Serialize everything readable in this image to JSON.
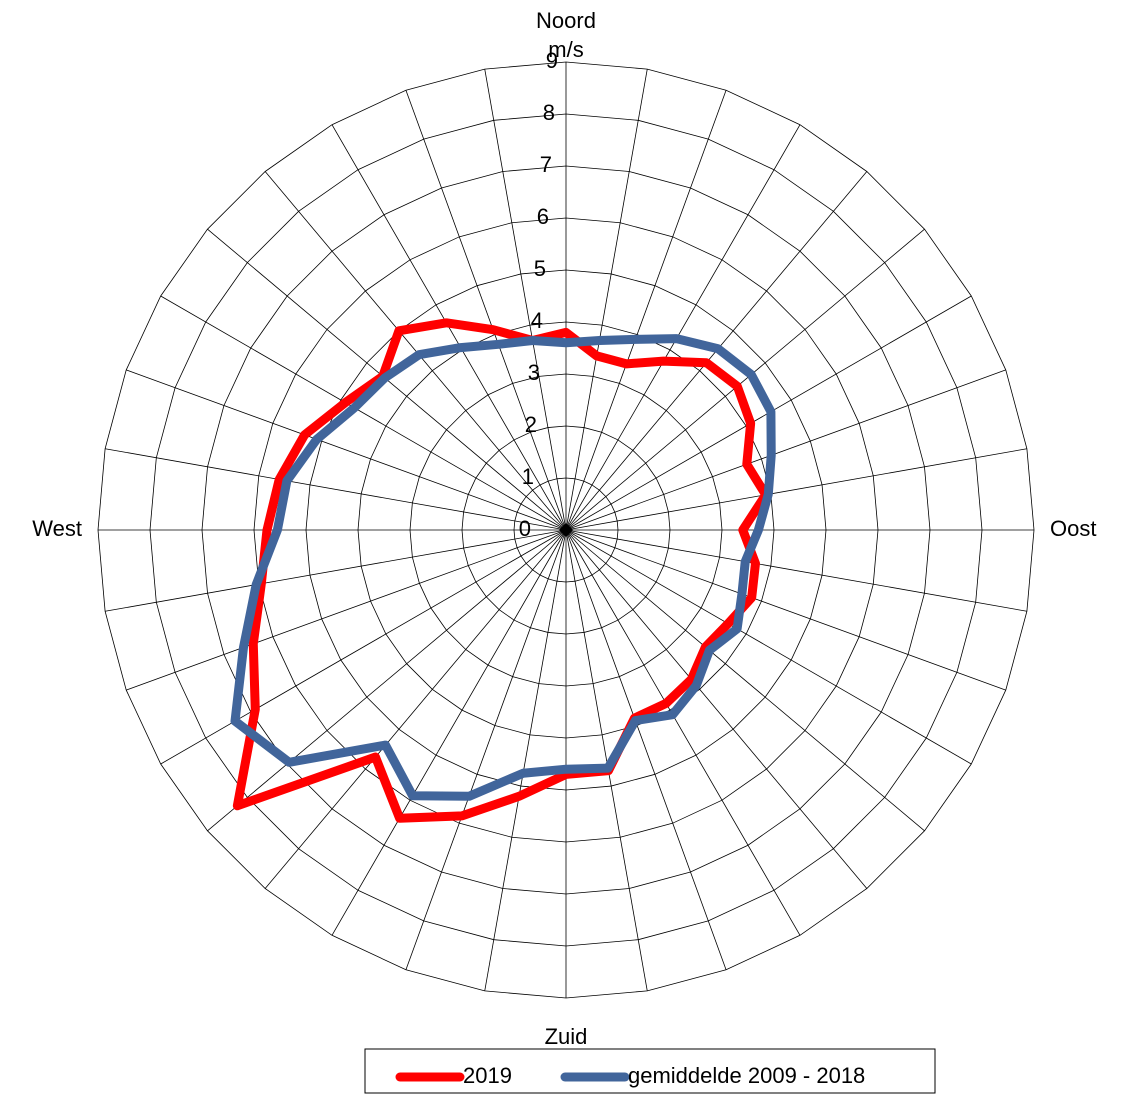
{
  "chart_data": {
    "type": "radar",
    "categories": [
      "Noord",
      null,
      null,
      null,
      null,
      null,
      null,
      null,
      null,
      "Oost",
      null,
      null,
      null,
      null,
      null,
      null,
      null,
      null,
      "Zuid",
      null,
      null,
      null,
      null,
      null,
      null,
      null,
      null,
      "West",
      null,
      null,
      null,
      null,
      null,
      null,
      null,
      null
    ],
    "y_label": "m/s",
    "ylim": [
      0,
      9
    ],
    "yticks": [
      0,
      1,
      2,
      3,
      4,
      5,
      6,
      7,
      8,
      9
    ],
    "grid": true,
    "legend": "bottom",
    "series": [
      {
        "name": "2019",
        "color": "#ff0000",
        "values": [
          3.8,
          3.4,
          3.4,
          3.75,
          4.2,
          4.3,
          4.1,
          3.7,
          3.9,
          3.4,
          3.7,
          3.8,
          3.6,
          3.5,
          3.75,
          3.85,
          3.85,
          4.7,
          4.7,
          5.2,
          5.85,
          6.4,
          5.7,
          8.25,
          6.9,
          6.4,
          5.95,
          5.75,
          5.6,
          5.35,
          4.9,
          4.6,
          5.0,
          4.6,
          4.1,
          3.7
        ]
      },
      {
        "name": "gemiddelde 2009 - 2018",
        "color": "#41659b",
        "values": [
          3.6,
          3.7,
          3.9,
          4.25,
          4.55,
          4.65,
          4.55,
          4.2,
          3.95,
          3.7,
          3.5,
          3.6,
          3.8,
          3.6,
          3.9,
          4.1,
          3.9,
          4.65,
          4.6,
          4.75,
          5.45,
          5.9,
          5.4,
          6.95,
          7.35,
          6.6,
          6.05,
          5.55,
          5.45,
          5.1,
          4.7,
          4.55,
          4.4,
          4.05,
          3.8,
          3.7
        ]
      }
    ]
  }
}
